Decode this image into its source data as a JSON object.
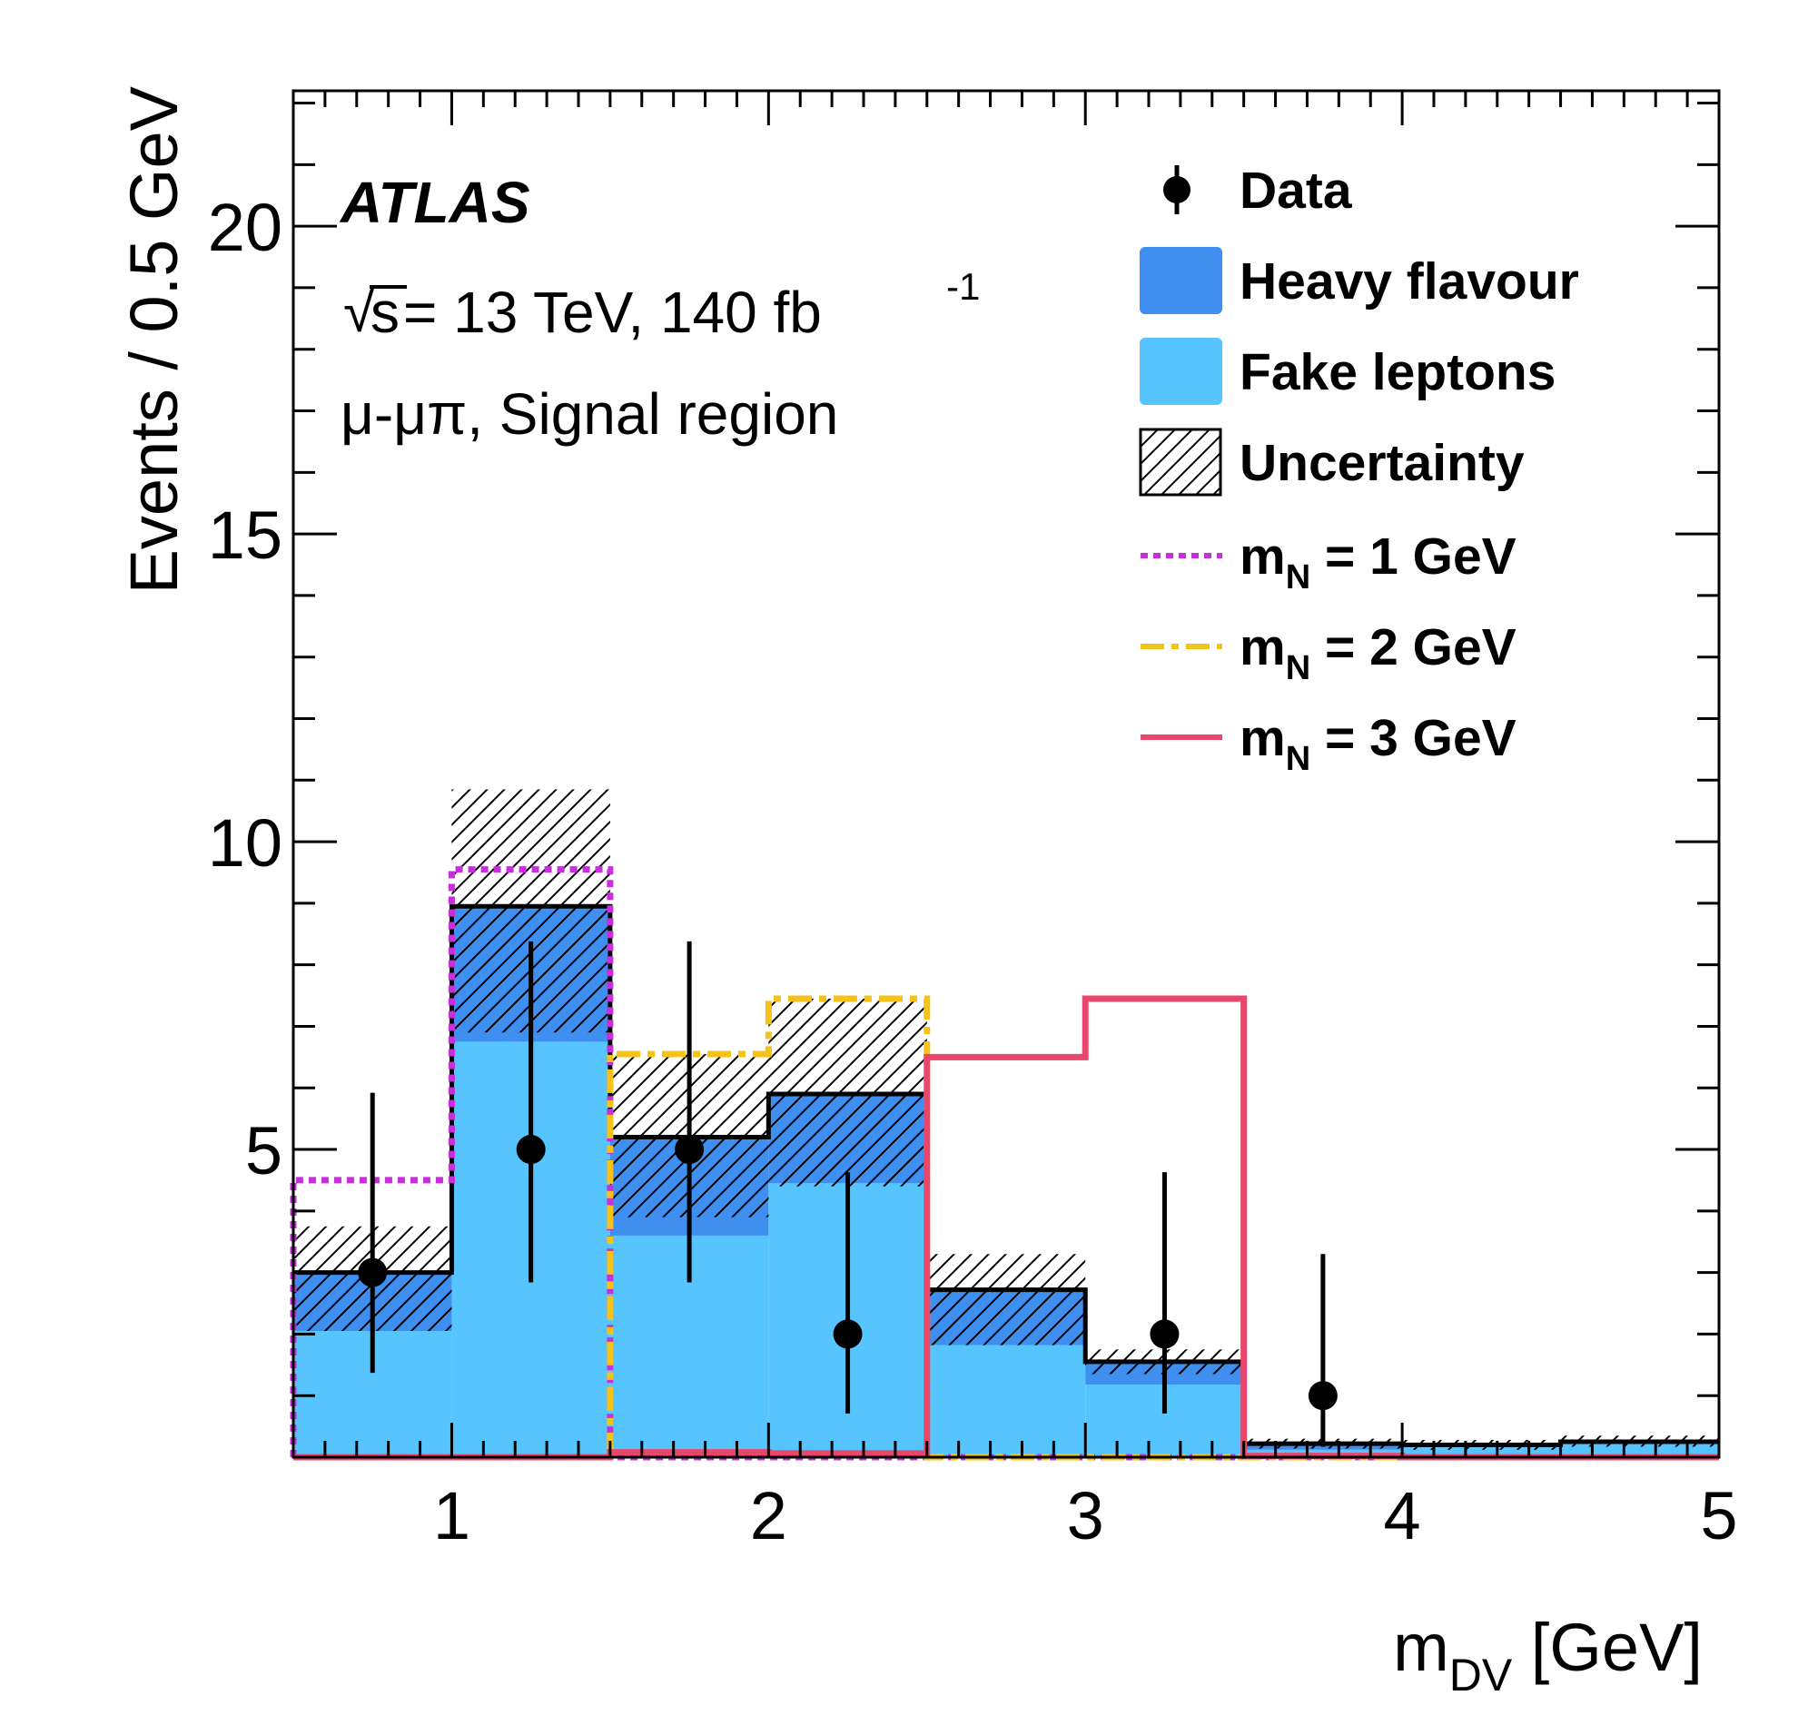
{
  "chart_data": {
    "type": "bar",
    "stacked": true,
    "bin_edges": [
      0.5,
      1.0,
      1.5,
      2.0,
      2.5,
      3.0,
      3.5,
      4.0,
      4.5,
      5.0
    ],
    "xlim": [
      0.5,
      5.0
    ],
    "ylim": [
      0,
      22.2
    ],
    "xticks": [
      1,
      2,
      3,
      4,
      5
    ],
    "yticks": [
      5,
      10,
      15,
      20
    ],
    "xlabel_main": "m",
    "xlabel_sub": "DV",
    "xlabel_unit": " [GeV]",
    "ylabel": "Events / 0.5 GeV",
    "experiment": "ATLAS",
    "energy_sqrt": "s",
    "energy_text": " = 13 TeV, 140 fb",
    "energy_sup": "-1",
    "channel": "μ-μπ, Signal region",
    "legend_position": "top-right",
    "grid": false,
    "series": [
      {
        "name": "Fake leptons",
        "color": "#56c5ff",
        "values": [
          2.05,
          6.75,
          3.6,
          4.45,
          1.82,
          1.18,
          0.12,
          0.16,
          0.22
        ]
      },
      {
        "name": "Heavy flavour",
        "color": "#3f8ff0",
        "values": [
          0.95,
          2.2,
          1.6,
          1.45,
          0.9,
          0.37,
          0.1,
          0.04,
          0.03
        ]
      }
    ],
    "total_background": [
      3.0,
      8.95,
      5.2,
      5.9,
      2.72,
      1.55,
      0.22,
      0.2,
      0.25
    ],
    "uncertainty": {
      "name": "Uncertainty",
      "up": [
        3.75,
        10.85,
        6.55,
        7.45,
        3.3,
        1.75,
        0.3,
        0.28,
        0.35
      ],
      "down": [
        2.05,
        6.9,
        3.9,
        4.4,
        1.82,
        1.35,
        0.14,
        0.12,
        0.17
      ]
    },
    "data": {
      "name": "Data",
      "x": [
        0.75,
        1.25,
        1.75,
        2.25,
        3.25,
        3.75
      ],
      "y": [
        3,
        5,
        5,
        2,
        2,
        1
      ],
      "err_up": [
        2.92,
        3.38,
        3.38,
        2.63,
        2.63,
        2.3
      ],
      "err_down": [
        1.63,
        2.16,
        2.16,
        1.29,
        1.29,
        0.83
      ]
    },
    "signals": [
      {
        "name": "1 GeV",
        "color": "#c630d8",
        "style": "dotted",
        "values": [
          4.5,
          9.55,
          0.0,
          0.0,
          0.0,
          0.0,
          0.0,
          0.0,
          0.0
        ]
      },
      {
        "name": "2 GeV",
        "color": "#f5c21b",
        "style": "dashdot",
        "values": [
          0.0,
          0.0,
          6.55,
          7.45,
          0.0,
          0.0,
          0.0,
          0.0,
          0.0
        ]
      },
      {
        "name": "3 GeV",
        "color": "#e8466a",
        "style": "solid",
        "values": [
          0.0,
          0.0,
          0.08,
          0.06,
          6.5,
          7.45,
          0.02,
          0.0,
          0.0
        ]
      }
    ],
    "signal_label_main": "m",
    "signal_label_sub": "N",
    "signal_label_eq": " = "
  }
}
